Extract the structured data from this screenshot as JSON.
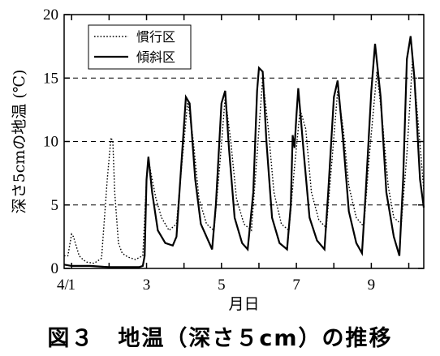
{
  "chart_data": {
    "type": "line",
    "caption": "図３　地温（深さ５cm）の推移",
    "xlabel": "月日",
    "ylabel": "深さ5cmの地温 (℃)",
    "x_tick_prefix": "4/",
    "xlim": [
      0.8,
      10.4
    ],
    "ylim": [
      0,
      20
    ],
    "x_ticks": [
      {
        "value": 1,
        "label": "1"
      },
      {
        "value": 3,
        "label": "3"
      },
      {
        "value": 5,
        "label": "5"
      },
      {
        "value": 7,
        "label": "7"
      },
      {
        "value": 9,
        "label": "9"
      }
    ],
    "y_ticks": [
      0,
      5,
      10,
      15,
      20
    ],
    "grid": {
      "y_dashed_at": [
        5,
        10,
        15
      ]
    },
    "legend_position": "top-left",
    "series": [
      {
        "name": "慣行区",
        "style": "dotted",
        "x": [
          0.8,
          0.9,
          1.0,
          1.05,
          1.1,
          1.2,
          1.3,
          1.4,
          1.6,
          1.8,
          1.95,
          2.05,
          2.1,
          2.15,
          2.25,
          2.35,
          2.5,
          2.7,
          2.9,
          3.0,
          3.05,
          3.1,
          3.25,
          3.4,
          3.6,
          3.8,
          3.95,
          4.1,
          4.25,
          4.4,
          4.6,
          4.8,
          4.95,
          5.1,
          5.25,
          5.4,
          5.6,
          5.8,
          5.95,
          6.1,
          6.25,
          6.4,
          6.6,
          6.8,
          6.95,
          7.1,
          7.25,
          7.4,
          7.6,
          7.8,
          7.95,
          8.1,
          8.25,
          8.4,
          8.6,
          8.8,
          8.95,
          9.15,
          9.3,
          9.45,
          9.6,
          9.8,
          9.95,
          10.1,
          10.25,
          10.4
        ],
        "y": [
          1.0,
          1.0,
          2.7,
          2.5,
          2.0,
          1.0,
          0.7,
          0.5,
          0.4,
          0.8,
          7.0,
          10.3,
          10.0,
          6.0,
          2.0,
          1.2,
          0.9,
          0.7,
          1.0,
          7.0,
          8.5,
          7.8,
          5.5,
          4.0,
          3.0,
          3.5,
          8.5,
          13.2,
          10.0,
          5.5,
          3.5,
          3.0,
          8.0,
          13.5,
          10.0,
          5.5,
          3.5,
          3.0,
          9.0,
          15.0,
          11.0,
          6.0,
          3.5,
          3.0,
          8.0,
          12.5,
          11.0,
          6.0,
          3.8,
          3.2,
          8.5,
          14.0,
          11.0,
          6.5,
          4.0,
          3.3,
          9.0,
          15.5,
          11.5,
          6.5,
          4.0,
          3.5,
          9.0,
          16.5,
          11.5,
          6.2
        ]
      },
      {
        "name": "傾斜区",
        "style": "solid",
        "x": [
          0.8,
          1.0,
          1.5,
          2.0,
          2.5,
          2.8,
          2.9,
          2.95,
          3.0,
          3.05,
          3.15,
          3.3,
          3.5,
          3.7,
          3.8,
          3.9,
          4.05,
          4.15,
          4.3,
          4.45,
          4.6,
          4.75,
          4.85,
          5.0,
          5.1,
          5.2,
          5.35,
          5.55,
          5.7,
          5.85,
          5.95,
          6.0,
          6.1,
          6.2,
          6.35,
          6.55,
          6.75,
          6.85,
          6.9,
          6.95,
          7.0,
          7.05,
          7.2,
          7.35,
          7.55,
          7.75,
          7.85,
          8.0,
          8.1,
          8.25,
          8.4,
          8.6,
          8.75,
          8.85,
          9.0,
          9.1,
          9.25,
          9.4,
          9.6,
          9.75,
          9.85,
          9.95,
          10.05,
          10.15,
          10.3,
          10.4
        ],
        "y": [
          0.3,
          0.2,
          0.2,
          0.1,
          0.1,
          0.1,
          0.2,
          1.0,
          7.0,
          8.8,
          6.0,
          3.0,
          2.0,
          1.8,
          2.5,
          7.0,
          13.5,
          13.0,
          7.0,
          3.5,
          2.5,
          1.5,
          5.0,
          13.0,
          14.0,
          9.5,
          4.0,
          2.0,
          1.5,
          6.0,
          14.0,
          15.8,
          15.5,
          10.0,
          4.0,
          2.0,
          1.5,
          5.0,
          10.5,
          9.5,
          12.0,
          14.2,
          9.0,
          4.0,
          2.2,
          1.5,
          6.0,
          13.5,
          14.8,
          10.0,
          4.5,
          2.0,
          1.2,
          6.0,
          14.0,
          17.7,
          13.5,
          6.0,
          2.5,
          1.0,
          7.0,
          16.5,
          18.3,
          15.0,
          7.0,
          4.8
        ]
      }
    ]
  }
}
